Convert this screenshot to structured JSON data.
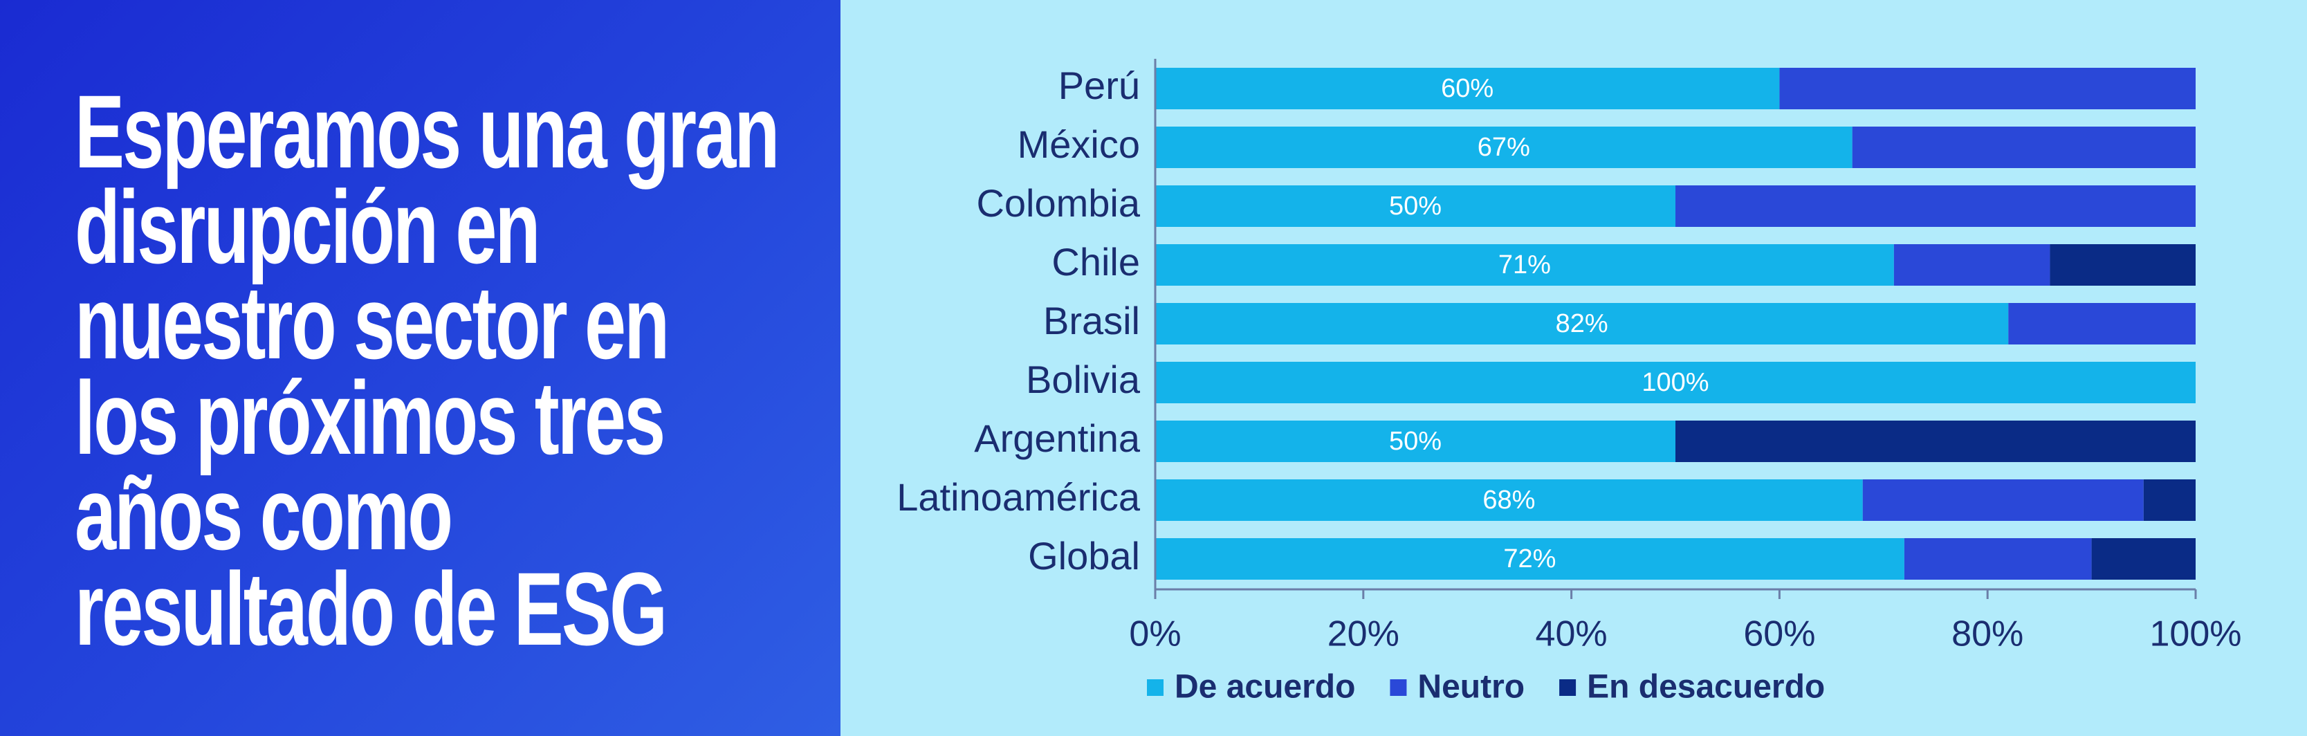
{
  "chart_data": {
    "type": "stacked-barh",
    "title": [
      "Esperamos una gran",
      "disrupción en",
      "nuestro sector en",
      "los próximos tres",
      "años como",
      "resultado de ESG"
    ],
    "categories": [
      "Perú",
      "México",
      "Colombia",
      "Chile",
      "Brasil",
      "Bolivia",
      "Argentina",
      "Latinoamérica",
      "Global"
    ],
    "series": [
      {
        "name": "De acuerdo",
        "color": "#14b3ea",
        "values": [
          60,
          67,
          50,
          71,
          82,
          100,
          50,
          68,
          72
        ],
        "value_labels": [
          "60%",
          "67%",
          "50%",
          "71%",
          "82%",
          "100%",
          "50%",
          "68%",
          "72%"
        ]
      },
      {
        "name": "Neutro",
        "color": "#2a48d8",
        "values": [
          40,
          33,
          50,
          15,
          18,
          0,
          0,
          27,
          18
        ]
      },
      {
        "name": "En desacuerdo",
        "color": "#0a2b86",
        "values": [
          0,
          0,
          0,
          14,
          0,
          0,
          50,
          5,
          10
        ]
      }
    ],
    "xlim": [
      0,
      100
    ],
    "xticks": [
      {
        "value": 0,
        "label": "0%"
      },
      {
        "value": 20,
        "label": "20%"
      },
      {
        "value": 40,
        "label": "40%"
      },
      {
        "value": 60,
        "label": "60%"
      },
      {
        "value": 80,
        "label": "80%"
      },
      {
        "value": 100,
        "label": "100%"
      }
    ],
    "legend": "bottom"
  }
}
